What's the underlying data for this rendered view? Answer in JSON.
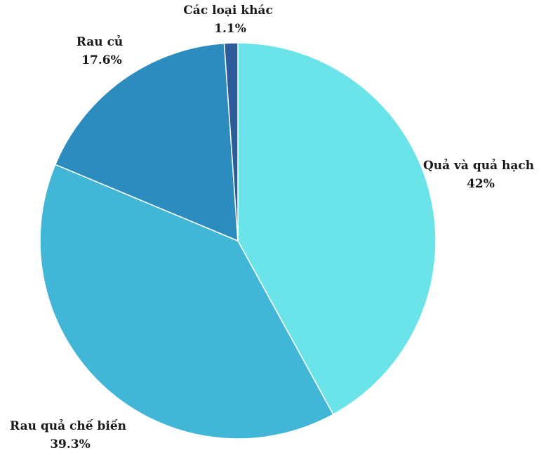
{
  "chart_data": {
    "type": "pie",
    "title": "",
    "start_angle_deg": 0,
    "direction": "clockwise",
    "slices": [
      {
        "name": "Quả và quả hạch",
        "value": 42.0,
        "label": "42%",
        "color": "#6ae4e9"
      },
      {
        "name": "Rau quả chế biến",
        "value": 39.3,
        "label": "39.3%",
        "color": "#42b6d6"
      },
      {
        "name": "Rau củ",
        "value": 17.6,
        "label": "17.6%",
        "color": "#2d8cbe"
      },
      {
        "name": "Các loại khác",
        "value": 1.1,
        "label": "1.1%",
        "color": "#2c5c9c"
      }
    ]
  }
}
